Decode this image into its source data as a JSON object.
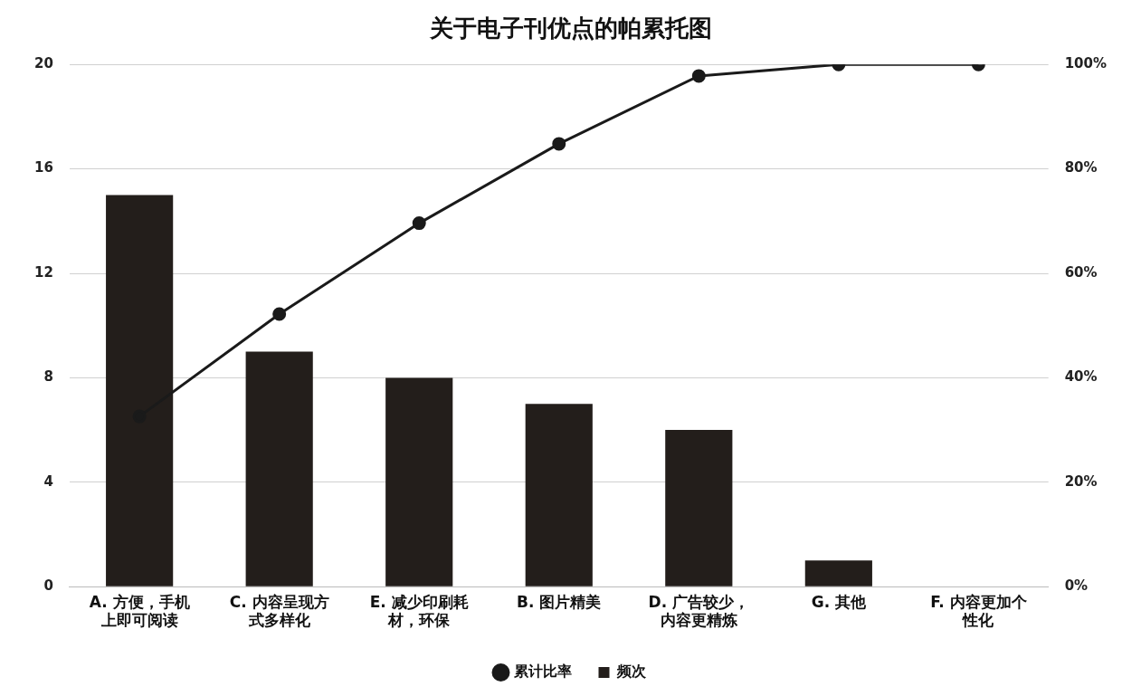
{
  "chart_data": {
    "type": "bar",
    "title": "关于电子刊优点的帕累托图",
    "categories": [
      "A. 方便，手机上即可阅读",
      "C. 内容呈现方式多样化",
      "E. 减少印刷耗材，环保",
      "B. 图片精美",
      "D. 广告较少，内容更精炼",
      "G. 其他",
      "F. 内容更加个性化"
    ],
    "series": [
      {
        "name": "累计比率",
        "type": "line",
        "axis": "y2",
        "color": "#1a1a1a",
        "values": [
          32.6,
          52.2,
          69.6,
          84.8,
          97.8,
          100,
          100
        ]
      },
      {
        "name": "频次",
        "color": "#231e1b",
        "values": [
          15,
          9,
          8,
          7,
          6,
          1,
          0
        ]
      }
    ],
    "ylim": [
      0,
      20
    ],
    "yticks": [
      0,
      4,
      8,
      12,
      16,
      20
    ],
    "y2lim": [
      0,
      100
    ],
    "y2ticks": [
      {
        "value": 0,
        "label": "0%"
      },
      {
        "value": 20,
        "label": "20%"
      },
      {
        "value": 40,
        "label": "40%"
      },
      {
        "value": 60,
        "label": "60%"
      },
      {
        "value": 80,
        "label": "80%"
      },
      {
        "value": 100,
        "label": "100%"
      }
    ],
    "grid": "y",
    "legend": "bottom",
    "marker": "circle"
  }
}
